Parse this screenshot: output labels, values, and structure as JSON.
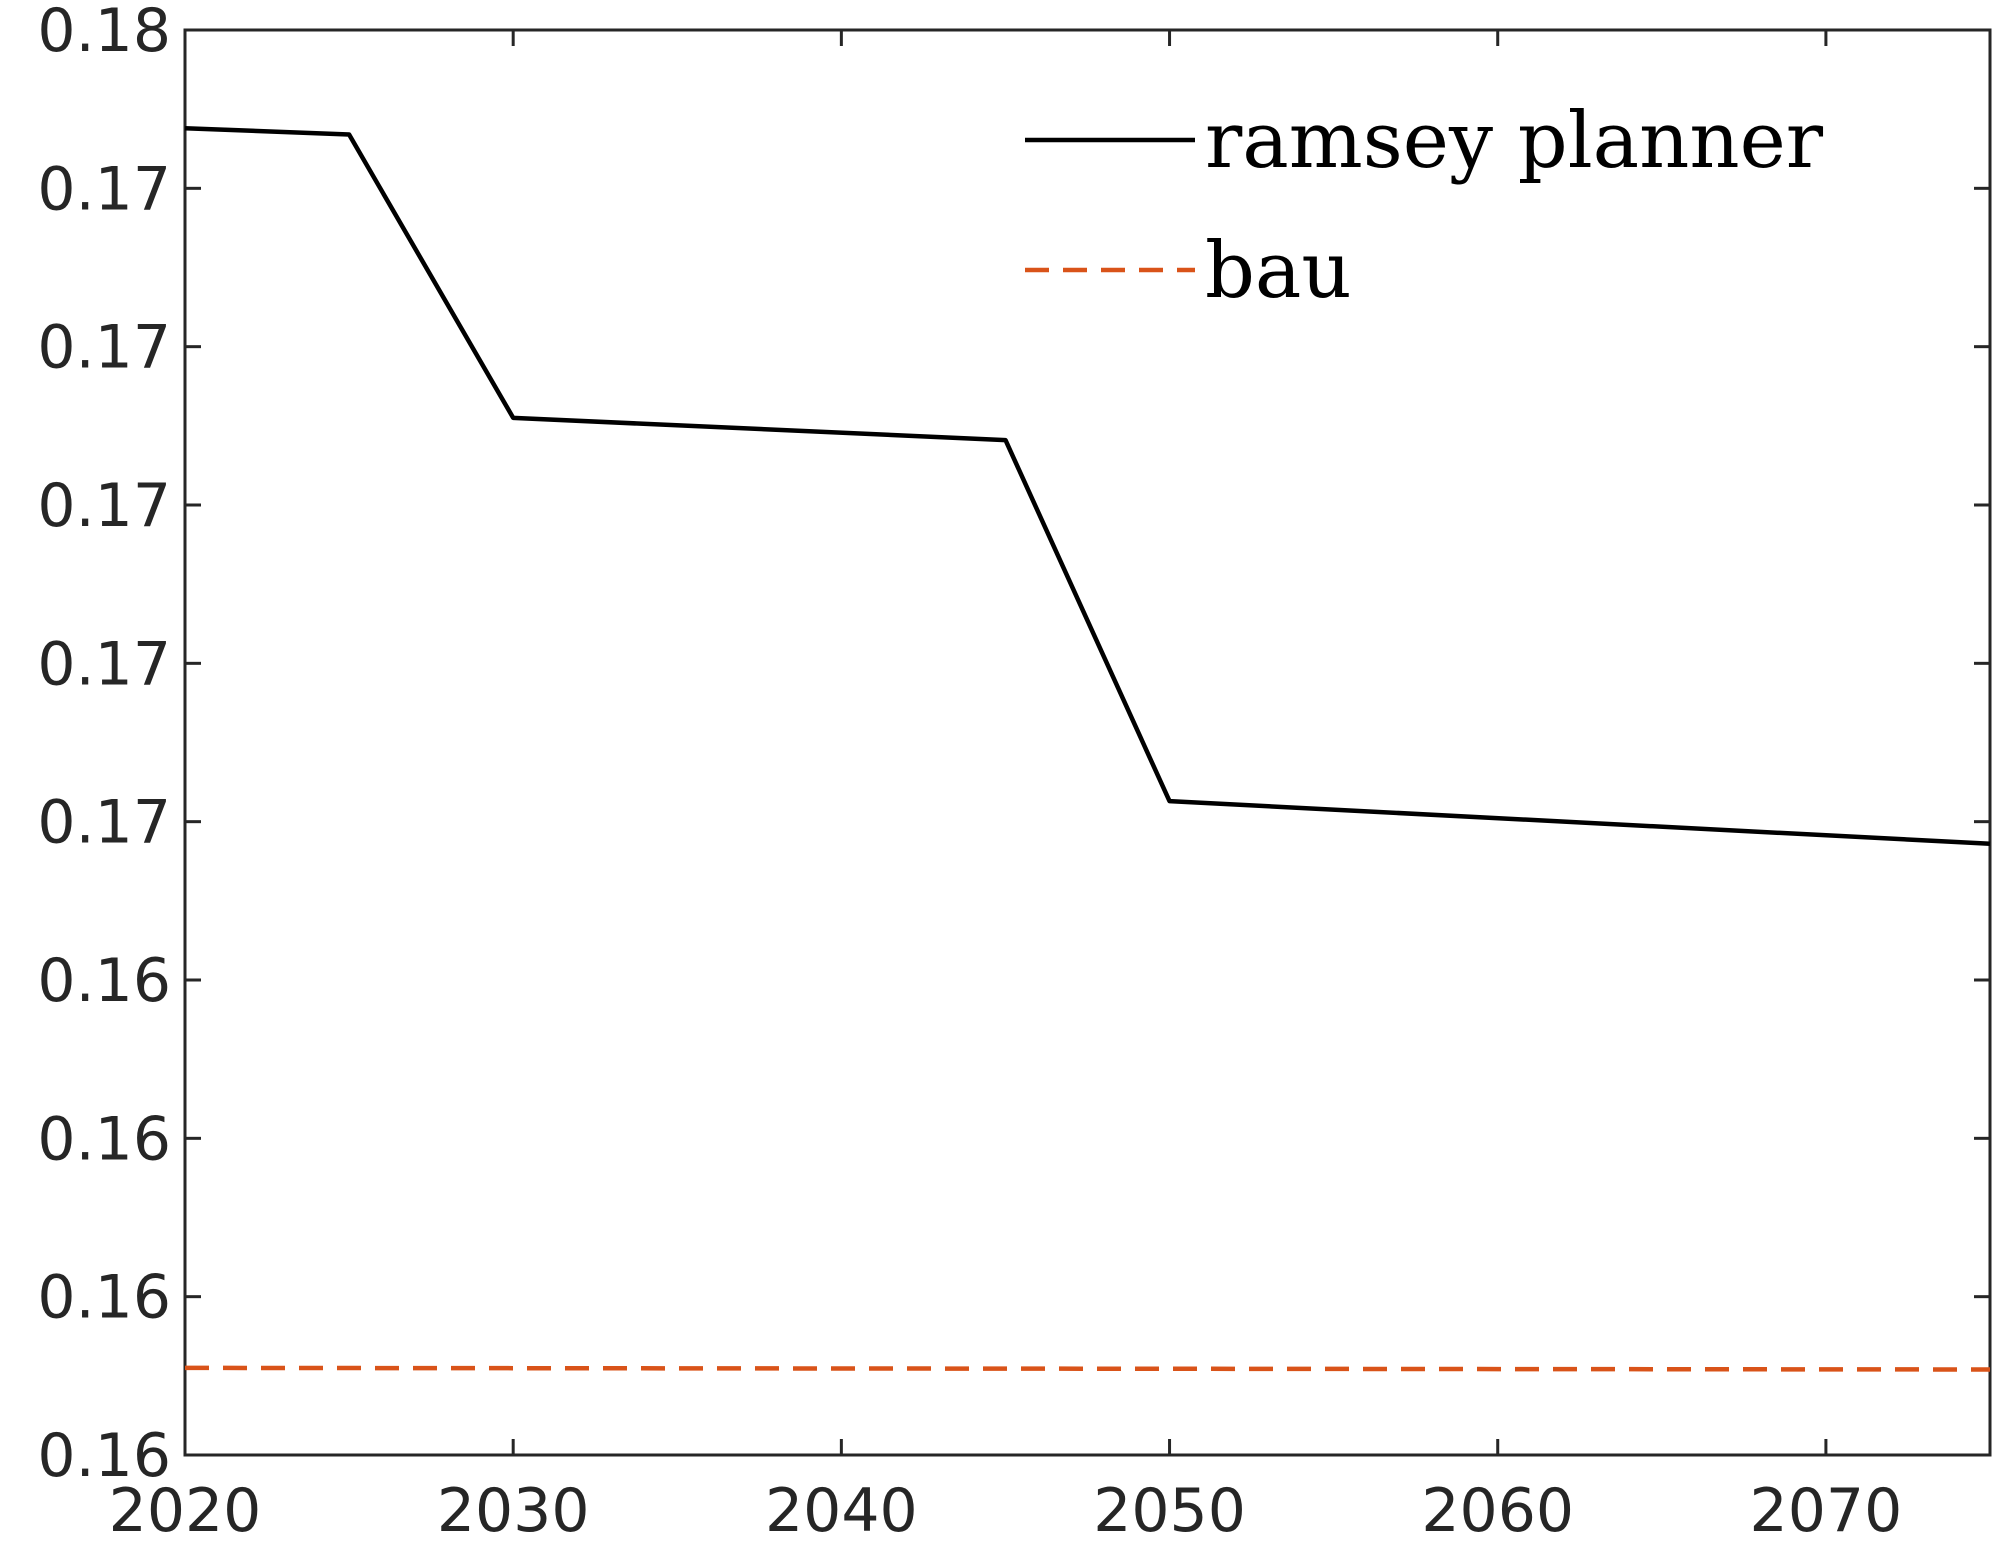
{
  "chart_data": {
    "type": "line",
    "title": "",
    "xlabel": "",
    "ylabel": "",
    "xlim": [
      2020,
      2075
    ],
    "ylim": [
      0,
      9
    ],
    "x_ticks": [
      {
        "value": 2020,
        "label": "2020"
      },
      {
        "value": 2030,
        "label": "2030"
      },
      {
        "value": 2040,
        "label": "2040"
      },
      {
        "value": 2050,
        "label": "2050"
      },
      {
        "value": 2060,
        "label": "2060"
      },
      {
        "value": 2070,
        "label": "2070"
      }
    ],
    "y_ticks": [
      {
        "value": 0,
        "label": "0.16"
      },
      {
        "value": 1,
        "label": "0.16"
      },
      {
        "value": 2,
        "label": "0.16"
      },
      {
        "value": 3,
        "label": "0.16"
      },
      {
        "value": 4,
        "label": "0.17"
      },
      {
        "value": 5,
        "label": "0.17"
      },
      {
        "value": 6,
        "label": "0.17"
      },
      {
        "value": 7,
        "label": "0.17"
      },
      {
        "value": 8,
        "label": "0.17"
      },
      {
        "value": 9,
        "label": "0.18"
      }
    ],
    "grid": false,
    "legend": "top-right",
    "series": [
      {
        "name": "ramsey planner",
        "color": "#000000",
        "dash": "solid",
        "x": [
          2020,
          2025,
          2030,
          2045,
          2050,
          2075
        ],
        "y": [
          8.38,
          8.34,
          6.55,
          6.41,
          4.13,
          3.86
        ]
      },
      {
        "name": "bau",
        "color": "#d95319",
        "dash": "dashed",
        "x": [
          2020,
          2075
        ],
        "y": [
          0.55,
          0.54
        ]
      }
    ]
  }
}
